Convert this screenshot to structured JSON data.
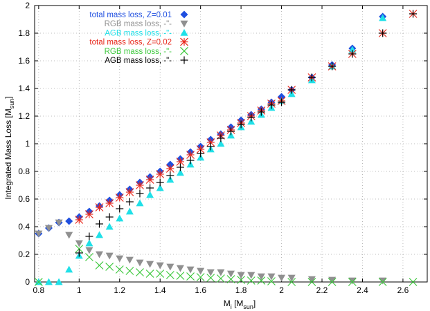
{
  "chart_data": {
    "type": "scatter",
    "xlabel": "M",
    "xlabel_sub": "i",
    "xlabel_unit_open": " [M",
    "xlabel_unit_sub": "sun",
    "xlabel_unit_close": "]",
    "ylabel": "Integrated Mass Loss [M",
    "ylabel_sub": "sun",
    "ylabel_close": "]",
    "xlim": [
      0.78,
      2.72
    ],
    "ylim": [
      0,
      2
    ],
    "xticks": [
      0.8,
      1,
      1.2,
      1.4,
      1.6,
      1.8,
      2,
      2.2,
      2.4,
      2.6
    ],
    "xtick_labels": [
      "0.8",
      "1",
      "1.2",
      "1.4",
      "1.6",
      "1.8",
      "2",
      "2.2",
      "2.4",
      "2.6"
    ],
    "yticks": [
      0,
      0.2,
      0.4,
      0.6,
      0.8,
      1,
      1.2,
      1.4,
      1.6,
      1.8,
      2
    ],
    "ytick_labels": [
      "0",
      "0.2",
      "0.4",
      "0.6",
      "0.8",
      "1",
      "1.2",
      "1.4",
      "1.6",
      "1.8",
      "2"
    ],
    "grid": true,
    "legend_position": "top-left",
    "series": [
      {
        "name": "total mass loss, Z=0.01",
        "marker": "diamond",
        "color": "#1f4fe0",
        "points": [
          [
            0.8,
            0.35
          ],
          [
            0.85,
            0.39
          ],
          [
            0.9,
            0.43
          ],
          [
            0.95,
            0.44
          ],
          [
            1.0,
            0.47
          ],
          [
            1.05,
            0.51
          ],
          [
            1.1,
            0.55
          ],
          [
            1.15,
            0.59
          ],
          [
            1.2,
            0.63
          ],
          [
            1.25,
            0.67
          ],
          [
            1.3,
            0.72
          ],
          [
            1.35,
            0.76
          ],
          [
            1.4,
            0.8
          ],
          [
            1.45,
            0.85
          ],
          [
            1.5,
            0.89
          ],
          [
            1.55,
            0.94
          ],
          [
            1.6,
            0.98
          ],
          [
            1.65,
            1.03
          ],
          [
            1.7,
            1.07
          ],
          [
            1.75,
            1.12
          ],
          [
            1.8,
            1.17
          ],
          [
            1.85,
            1.21
          ],
          [
            1.9,
            1.25
          ],
          [
            1.95,
            1.3
          ],
          [
            2.0,
            1.34
          ],
          [
            2.05,
            1.39
          ],
          [
            2.15,
            1.48
          ],
          [
            2.25,
            1.57
          ],
          [
            2.35,
            1.69
          ],
          [
            2.5,
            1.92
          ]
        ]
      },
      {
        "name": "RGB mass loss, -\"-",
        "marker": "triangle-down",
        "color": "#909090",
        "points": [
          [
            0.8,
            0.35
          ],
          [
            0.85,
            0.39
          ],
          [
            0.9,
            0.43
          ],
          [
            0.95,
            0.34
          ],
          [
            1.0,
            0.28
          ],
          [
            1.05,
            0.23
          ],
          [
            1.1,
            0.2
          ],
          [
            1.15,
            0.19
          ],
          [
            1.2,
            0.17
          ],
          [
            1.25,
            0.16
          ],
          [
            1.3,
            0.14
          ],
          [
            1.35,
            0.13
          ],
          [
            1.4,
            0.12
          ],
          [
            1.45,
            0.11
          ],
          [
            1.5,
            0.1
          ],
          [
            1.55,
            0.09
          ],
          [
            1.6,
            0.08
          ],
          [
            1.65,
            0.07
          ],
          [
            1.7,
            0.07
          ],
          [
            1.75,
            0.06
          ],
          [
            1.8,
            0.05
          ],
          [
            1.85,
            0.05
          ],
          [
            1.9,
            0.04
          ],
          [
            1.95,
            0.04
          ],
          [
            2.0,
            0.03
          ],
          [
            2.05,
            0.03
          ],
          [
            2.15,
            0.02
          ],
          [
            2.25,
            0.015
          ],
          [
            2.35,
            0.01
          ],
          [
            2.5,
            0.01
          ]
        ]
      },
      {
        "name": "AGB mass loss, -\"-",
        "marker": "triangle-up",
        "color": "#20e0e8",
        "points": [
          [
            0.8,
            0.0
          ],
          [
            0.85,
            0.0
          ],
          [
            0.9,
            0.0
          ],
          [
            0.95,
            0.09
          ],
          [
            1.0,
            0.19
          ],
          [
            1.05,
            0.28
          ],
          [
            1.1,
            0.34
          ],
          [
            1.15,
            0.4
          ],
          [
            1.2,
            0.46
          ],
          [
            1.25,
            0.51
          ],
          [
            1.3,
            0.57
          ],
          [
            1.35,
            0.63
          ],
          [
            1.4,
            0.68
          ],
          [
            1.45,
            0.74
          ],
          [
            1.5,
            0.79
          ],
          [
            1.55,
            0.85
          ],
          [
            1.6,
            0.9
          ],
          [
            1.65,
            0.96
          ],
          [
            1.7,
            1.0
          ],
          [
            1.75,
            1.06
          ],
          [
            1.8,
            1.12
          ],
          [
            1.85,
            1.16
          ],
          [
            1.9,
            1.21
          ],
          [
            1.95,
            1.26
          ],
          [
            2.0,
            1.31
          ],
          [
            2.05,
            1.36
          ],
          [
            2.15,
            1.46
          ],
          [
            2.25,
            1.56
          ],
          [
            2.35,
            1.68
          ],
          [
            2.5,
            1.91
          ]
        ]
      },
      {
        "name": "total mass loss, Z=0.02",
        "marker": "star",
        "color": "#e8281c",
        "points": [
          [
            1.0,
            0.45
          ],
          [
            1.05,
            0.49
          ],
          [
            1.1,
            0.54
          ],
          [
            1.15,
            0.57
          ],
          [
            1.2,
            0.61
          ],
          [
            1.25,
            0.65
          ],
          [
            1.3,
            0.7
          ],
          [
            1.35,
            0.74
          ],
          [
            1.4,
            0.78
          ],
          [
            1.45,
            0.82
          ],
          [
            1.5,
            0.87
          ],
          [
            1.55,
            0.92
          ],
          [
            1.6,
            0.96
          ],
          [
            1.65,
            1.01
          ],
          [
            1.7,
            1.06
          ],
          [
            1.75,
            1.1
          ],
          [
            1.8,
            1.15
          ],
          [
            1.85,
            1.2
          ],
          [
            1.9,
            1.24
          ],
          [
            1.95,
            1.29
          ],
          [
            2.0,
            1.31
          ],
          [
            2.05,
            1.39
          ],
          [
            2.15,
            1.48
          ],
          [
            2.25,
            1.56
          ],
          [
            2.35,
            1.65
          ],
          [
            2.5,
            1.8
          ],
          [
            2.65,
            1.94
          ]
        ]
      },
      {
        "name": "RGB mass loss, -\"-",
        "marker": "x",
        "color": "#3cc83c",
        "points": [
          [
            0.8,
            0.0
          ],
          [
            1.0,
            0.24
          ],
          [
            1.05,
            0.18
          ],
          [
            1.1,
            0.12
          ],
          [
            1.15,
            0.11
          ],
          [
            1.2,
            0.09
          ],
          [
            1.25,
            0.08
          ],
          [
            1.3,
            0.07
          ],
          [
            1.35,
            0.06
          ],
          [
            1.4,
            0.06
          ],
          [
            1.45,
            0.05
          ],
          [
            1.5,
            0.045
          ],
          [
            1.55,
            0.04
          ],
          [
            1.6,
            0.035
          ],
          [
            1.65,
            0.03
          ],
          [
            1.7,
            0.025
          ],
          [
            1.75,
            0.02
          ],
          [
            1.8,
            0.015
          ],
          [
            1.85,
            0.01
          ],
          [
            1.9,
            0.01
          ],
          [
            1.95,
            0.005
          ],
          [
            2.05,
            0.0
          ],
          [
            2.15,
            0.0
          ],
          [
            2.25,
            0.0
          ],
          [
            2.35,
            0.0
          ],
          [
            2.5,
            0.0
          ],
          [
            2.65,
            0.0
          ]
        ]
      },
      {
        "name": "AGB mass loss, -\"-",
        "marker": "plus",
        "color": "#000000",
        "points": [
          [
            1.0,
            0.21
          ],
          [
            1.05,
            0.33
          ],
          [
            1.1,
            0.42
          ],
          [
            1.15,
            0.47
          ],
          [
            1.2,
            0.53
          ],
          [
            1.25,
            0.58
          ],
          [
            1.3,
            0.64
          ],
          [
            1.35,
            0.68
          ],
          [
            1.4,
            0.72
          ],
          [
            1.45,
            0.77
          ],
          [
            1.5,
            0.83
          ],
          [
            1.55,
            0.88
          ],
          [
            1.6,
            0.93
          ],
          [
            1.65,
            0.98
          ],
          [
            1.7,
            1.04
          ],
          [
            1.75,
            1.09
          ],
          [
            1.8,
            1.14
          ],
          [
            1.85,
            1.19
          ],
          [
            1.9,
            1.23
          ],
          [
            1.95,
            1.28
          ],
          [
            2.0,
            1.3
          ],
          [
            2.05,
            1.39
          ],
          [
            2.15,
            1.48
          ],
          [
            2.25,
            1.56
          ],
          [
            2.35,
            1.65
          ],
          [
            2.5,
            1.8
          ],
          [
            2.65,
            1.94
          ]
        ]
      }
    ]
  }
}
